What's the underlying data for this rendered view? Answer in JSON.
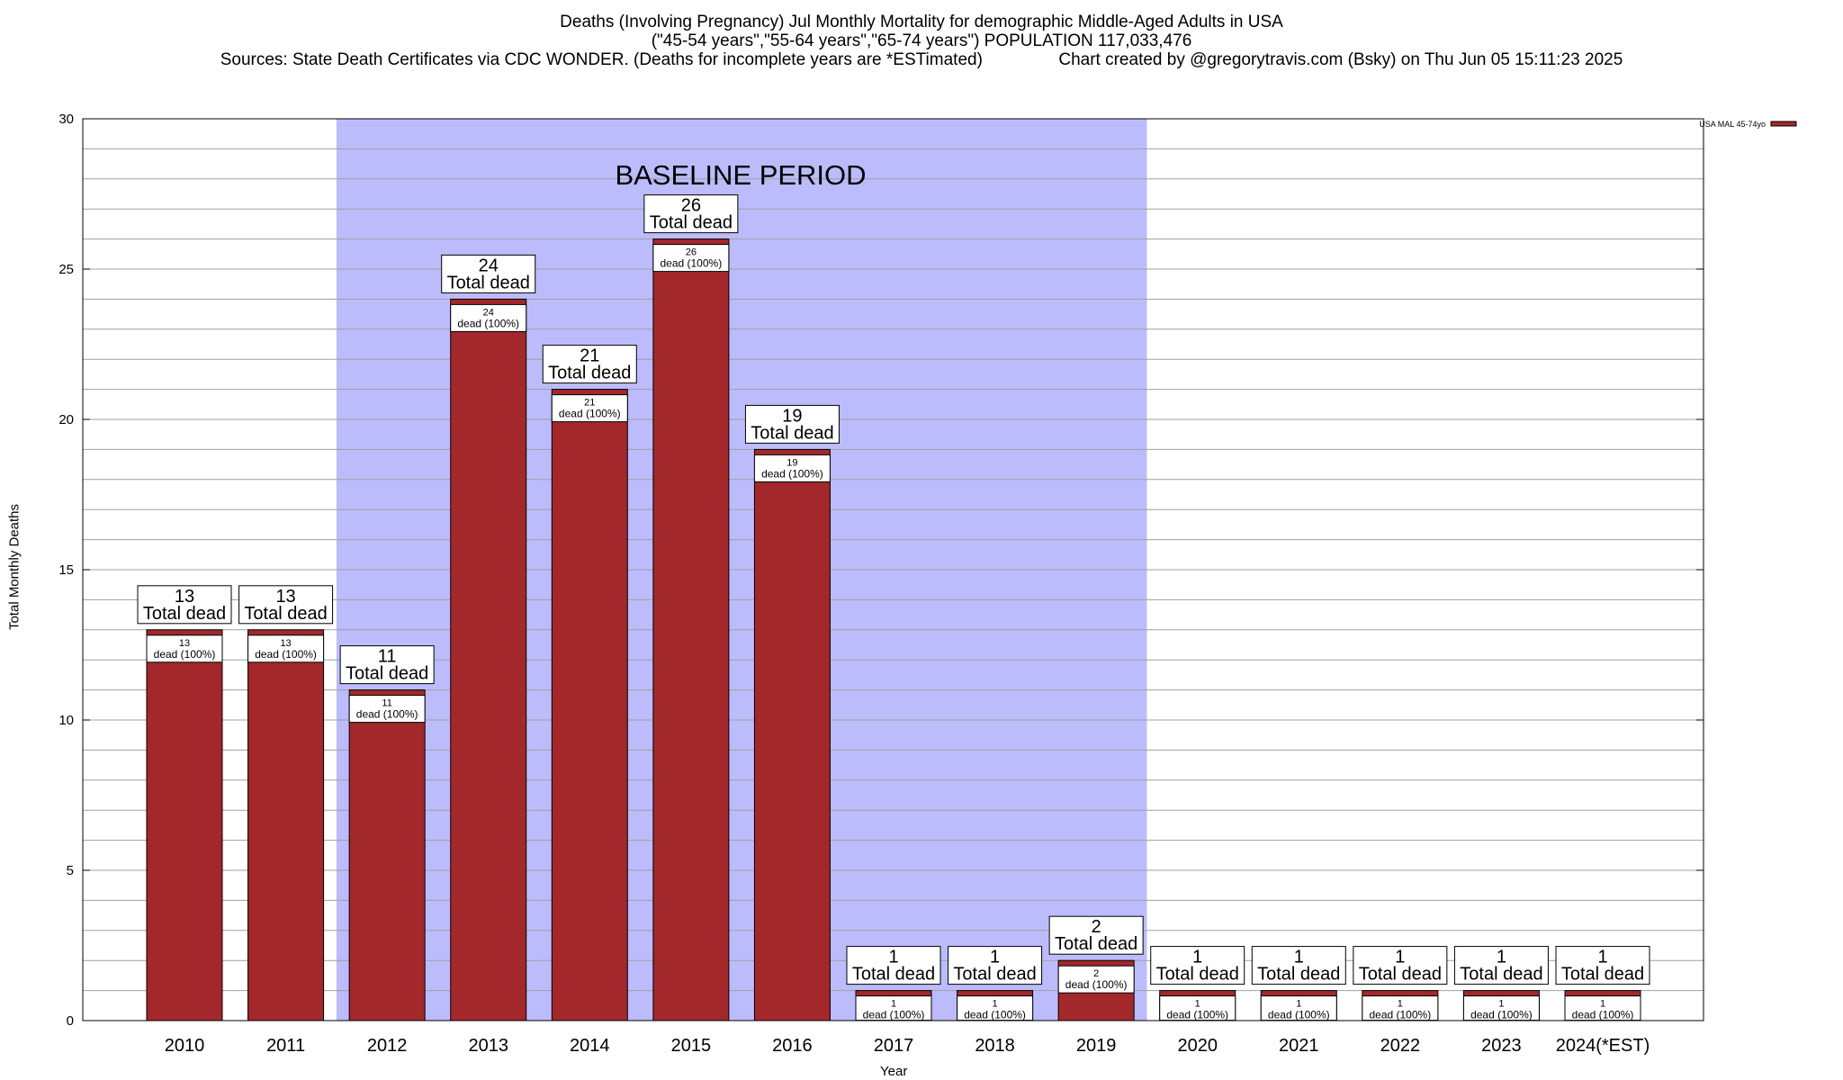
{
  "header": {
    "title_line1": "Deaths (Involving Pregnancy) Jul Monthly Mortality for demographic Middle-Aged Adults in USA",
    "title_line2": "(\"45-54 years\",\"55-64 years\",\"65-74 years\") POPULATION 117,033,476",
    "title_line3": "Sources: State Death Certificates via CDC WONDER. (Deaths for incomplete years are *ESTimated)                Chart created by @gregorytravis.com (Bsky) on Thu Jun 05 15:11:23 2025"
  },
  "colors": {
    "bar_fill": "#a3282b",
    "baseline_band": "#bcbcfc",
    "grid": "#a0a0a0"
  },
  "chart_data": {
    "type": "bar",
    "categories": [
      "2010",
      "2011",
      "2012",
      "2013",
      "2014",
      "2015",
      "2016",
      "2017",
      "2018",
      "2019",
      "2020",
      "2021",
      "2022",
      "2023",
      "2024(*EST)"
    ],
    "series": [
      {
        "name": "USA MAL 45-74yo",
        "values": [
          13,
          13,
          11,
          24,
          21,
          26,
          19,
          1,
          1,
          2,
          1,
          1,
          1,
          1,
          1
        ]
      }
    ],
    "bar_label_main": "Total dead",
    "bar_label_inner": "dead (100%)",
    "xlabel": "Year",
    "ylabel": "Total Monthly Deaths",
    "ylim": [
      0,
      30
    ],
    "yticks": [
      0,
      5,
      10,
      15,
      20,
      25,
      30
    ],
    "y_minor_step": 1,
    "grid": true,
    "legend_position": "top-right",
    "annotations": [
      {
        "text": "BASELINE PERIOD",
        "from_category": "2012",
        "to_category": "2019"
      }
    ]
  }
}
